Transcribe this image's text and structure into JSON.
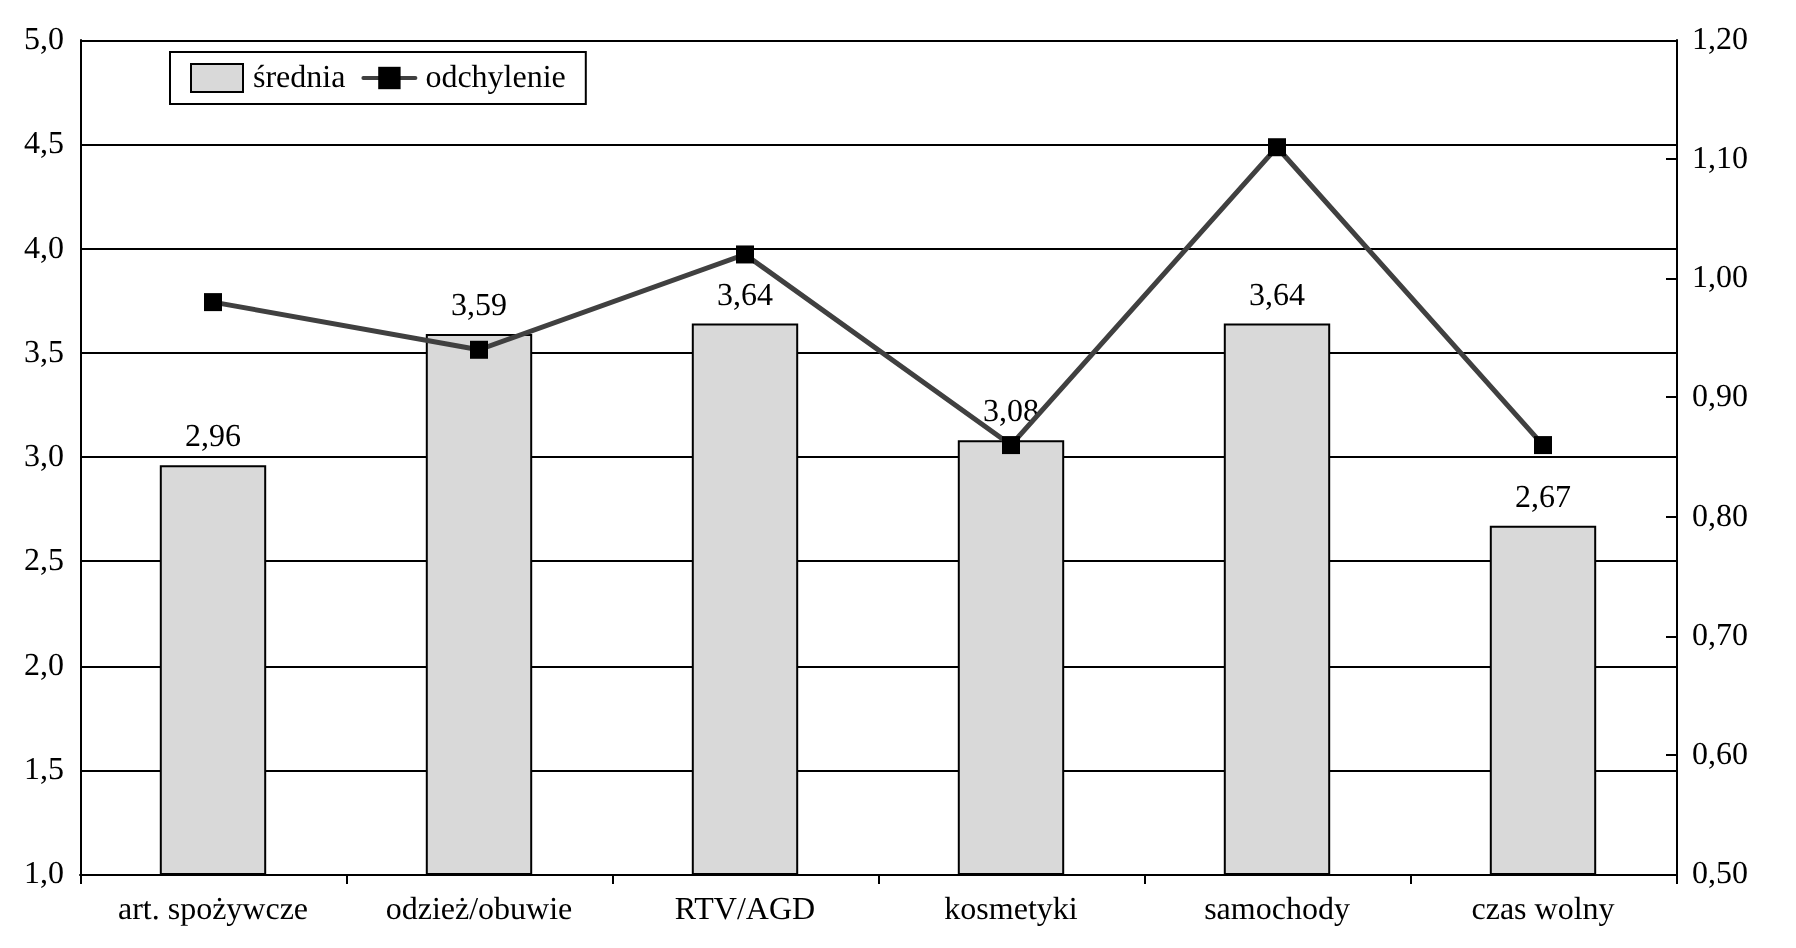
{
  "chart_data": {
    "type": "bar",
    "categories": [
      "art. spożywcze",
      "odzież/obuwie",
      "RTV/AGD",
      "kosmetyki",
      "samochody",
      "czas wolny"
    ],
    "series": [
      {
        "name": "średnia",
        "color": "#d9d9d9",
        "values": [
          2.96,
          3.59,
          3.64,
          3.08,
          3.64,
          2.67
        ],
        "value_labels": [
          "2,96",
          "3,59",
          "3,64",
          "3,08",
          "3,64",
          "2,67"
        ]
      },
      {
        "name": "odchylenie",
        "type": "line",
        "axis": "y2",
        "color": "#404040",
        "values": [
          0.98,
          0.94,
          1.02,
          0.86,
          1.11,
          0.86
        ]
      }
    ],
    "ylim": [
      1,
      5
    ],
    "yticks": [
      {
        "value": 1,
        "label": "1,0"
      },
      {
        "value": 1.5,
        "label": "1,5"
      },
      {
        "value": 2,
        "label": "2,0"
      },
      {
        "value": 2.5,
        "label": "2,5"
      },
      {
        "value": 3,
        "label": "3,0"
      },
      {
        "value": 3.5,
        "label": "3,5"
      },
      {
        "value": 4,
        "label": "4,0"
      },
      {
        "value": 4.5,
        "label": "4,5"
      },
      {
        "value": 5,
        "label": "5,0"
      }
    ],
    "y2lim": [
      0.5,
      1.2
    ],
    "y2ticks": [
      {
        "value": 0.5,
        "label": "0,50"
      },
      {
        "value": 0.6,
        "label": "0,60"
      },
      {
        "value": 0.7,
        "label": "0,70"
      },
      {
        "value": 0.8,
        "label": "0,80"
      },
      {
        "value": 0.9,
        "label": "0,90"
      },
      {
        "value": 1.0,
        "label": "1,00"
      },
      {
        "value": 1.1,
        "label": "1,10"
      },
      {
        "value": 1.2,
        "label": "1,20"
      }
    ],
    "grid": "y",
    "legend": "top left",
    "marker": "square",
    "line_style": "solid"
  }
}
